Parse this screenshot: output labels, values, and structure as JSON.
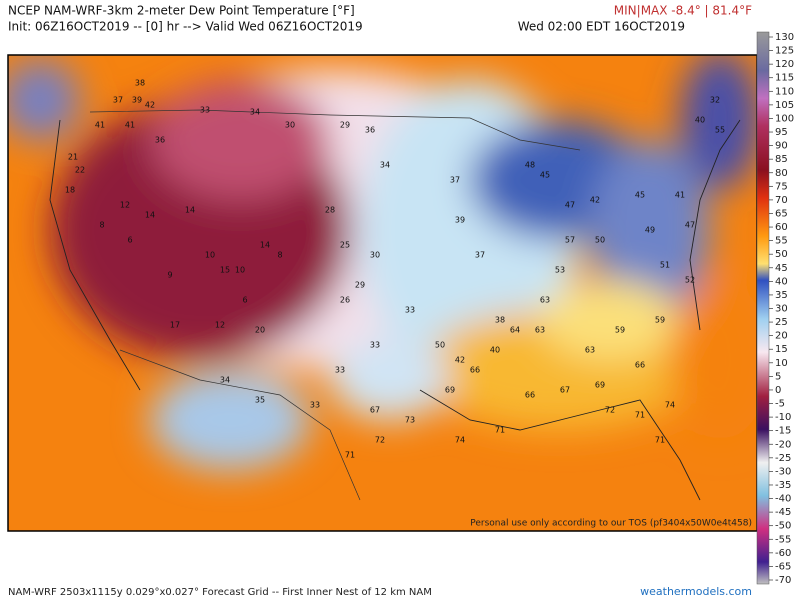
{
  "header": {
    "title": "NCEP NAM-WRF-3km 2-meter Dew Point Temperature [°F]",
    "init": "Init: 06Z16OCT2019 -- [0] hr --> Valid Wed 06Z16OCT2019",
    "valid_local": "Wed 02:00 EDT 16OCT2019",
    "minmax": "MIN|MAX -8.4° | 81.4°F"
  },
  "map": {
    "stations": [
      38,
      39,
      37,
      42,
      41,
      41,
      36,
      21,
      22,
      18,
      12,
      14,
      8,
      6,
      14,
      10,
      10,
      15,
      9,
      6,
      14,
      8,
      12,
      17,
      20,
      33,
      34,
      30,
      29,
      36,
      34,
      28,
      25,
      30,
      26,
      29,
      33,
      33,
      33,
      33,
      35,
      34,
      37,
      39,
      37,
      38,
      40,
      42,
      50,
      48,
      45,
      47,
      42,
      45,
      49,
      50,
      57,
      53,
      63,
      64,
      63,
      63,
      59,
      59,
      66,
      69,
      67,
      66,
      66,
      69,
      73,
      72,
      67,
      74,
      71,
      71,
      72,
      71,
      71,
      74,
      40,
      32,
      55,
      41,
      47,
      51,
      52
    ],
    "watermark": "Personal use only according to our TOS (pf3404x50W0e4t458)"
  },
  "colorbar": {
    "ticks": [
      130,
      125,
      120,
      115,
      110,
      105,
      100,
      95,
      90,
      85,
      80,
      75,
      70,
      65,
      60,
      55,
      50,
      45,
      40,
      35,
      30,
      25,
      20,
      15,
      10,
      5,
      0,
      -5,
      -10,
      -15,
      -20,
      -25,
      -30,
      -35,
      -40,
      -45,
      -50,
      -55,
      -60,
      -65,
      -70
    ]
  },
  "footer": {
    "grid_info": "NAM-WRF 2503x1115y 0.029°x0.027° Forecast Grid -- First Inner Nest of 12 km NAM",
    "site": "weathermodels.com"
  }
}
